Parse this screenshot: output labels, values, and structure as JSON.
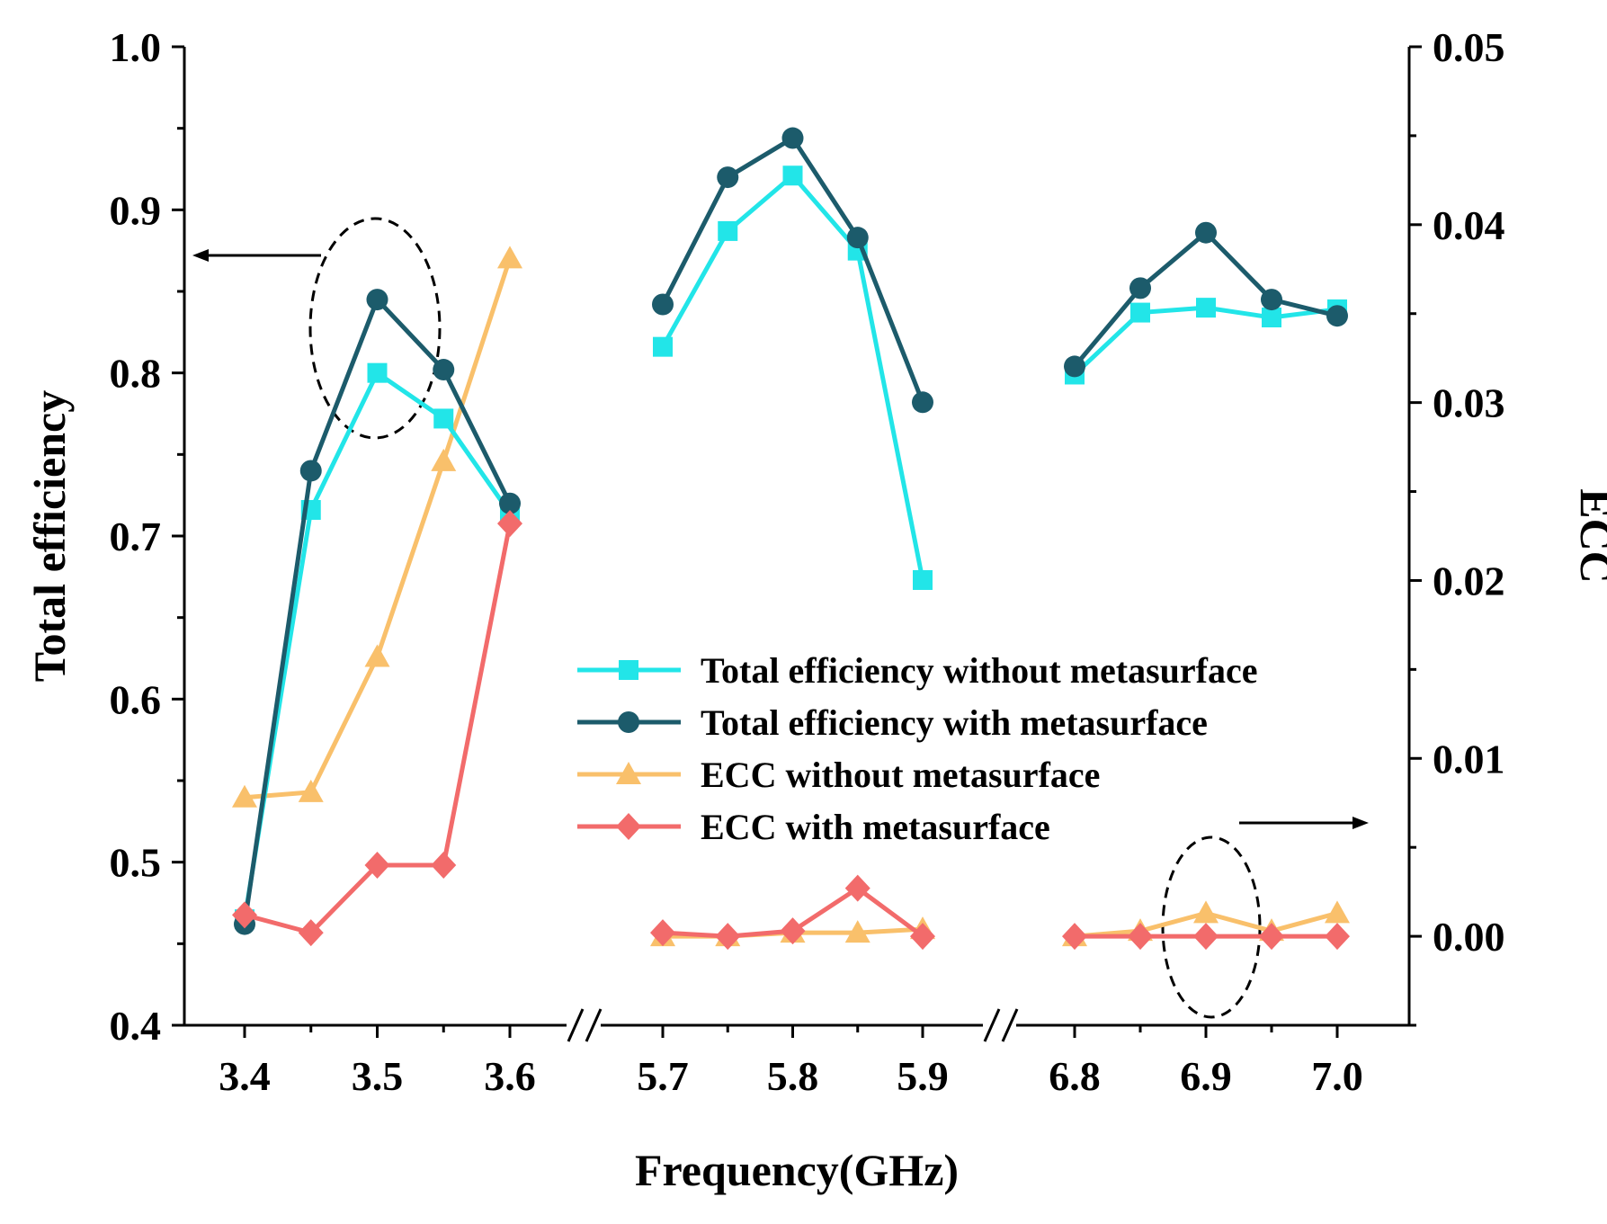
{
  "chart_data": {
    "type": "line",
    "xlabel": "Frequency(GHz)",
    "ylabel_left": "Total efficiency",
    "ylabel_right": "ECC",
    "ylim_left": [
      0.4,
      1.0
    ],
    "ylim_right": [
      -0.005,
      0.05
    ],
    "left_ticks": [
      "0.4",
      "0.5",
      "0.6",
      "0.7",
      "0.8",
      "0.9",
      "1.0"
    ],
    "right_ticks": [
      "0.00",
      "0.01",
      "0.02",
      "0.03",
      "0.04",
      "0.05"
    ],
    "x_segments": [
      {
        "ticks": [
          "3.4",
          "3.5",
          "3.6"
        ],
        "range": [
          3.4,
          3.6
        ]
      },
      {
        "ticks": [
          "5.7",
          "5.8",
          "5.9"
        ],
        "range": [
          5.7,
          5.9
        ]
      },
      {
        "ticks": [
          "6.8",
          "6.9",
          "7.0"
        ],
        "range": [
          6.8,
          7.0
        ]
      }
    ],
    "series": [
      {
        "name": "Total efficiency without metasurface",
        "axis": "left",
        "color": "#22E5E8",
        "marker": "square",
        "segments": [
          {
            "x": [
              3.4,
              3.45,
              3.5,
              3.55,
              3.6
            ],
            "y": [
              0.465,
              0.716,
              0.8,
              0.772,
              0.714
            ]
          },
          {
            "x": [
              5.7,
              5.75,
              5.8,
              5.85,
              5.9
            ],
            "y": [
              0.816,
              0.887,
              0.921,
              0.875,
              0.673
            ]
          },
          {
            "x": [
              6.8,
              6.85,
              6.9,
              6.95,
              7.0
            ],
            "y": [
              0.799,
              0.837,
              0.84,
              0.834,
              0.839
            ]
          }
        ]
      },
      {
        "name": "Total efficiency with metasurface",
        "axis": "left",
        "color": "#1C5B6B",
        "marker": "circle",
        "segments": [
          {
            "x": [
              3.4,
              3.45,
              3.5,
              3.55,
              3.6
            ],
            "y": [
              0.462,
              0.74,
              0.845,
              0.802,
              0.72
            ]
          },
          {
            "x": [
              5.7,
              5.75,
              5.8,
              5.85,
              5.9
            ],
            "y": [
              0.842,
              0.92,
              0.944,
              0.883,
              0.782
            ]
          },
          {
            "x": [
              6.8,
              6.85,
              6.9,
              6.95,
              7.0
            ],
            "y": [
              0.804,
              0.852,
              0.886,
              0.845,
              0.835
            ]
          }
        ]
      },
      {
        "name": "ECC without metasurface",
        "axis": "right",
        "color": "#F9C06B",
        "marker": "triangle",
        "segments": [
          {
            "x": [
              3.4,
              3.45,
              3.5,
              3.55,
              3.6
            ],
            "y": [
              0.0078,
              0.0081,
              0.0157,
              0.0267,
              0.0381
            ]
          },
          {
            "x": [
              5.7,
              5.75,
              5.8,
              5.85,
              5.9
            ],
            "y": [
              0.0,
              0.0,
              0.0002,
              0.0002,
              0.0004
            ]
          },
          {
            "x": [
              6.8,
              6.85,
              6.9,
              6.95,
              7.0
            ],
            "y": [
              0.0,
              0.0003,
              0.0013,
              0.0003,
              0.0013
            ]
          }
        ]
      },
      {
        "name": "ECC with metasurface",
        "axis": "right",
        "color": "#F26B6B",
        "marker": "diamond",
        "segments": [
          {
            "x": [
              3.4,
              3.45,
              3.5,
              3.55,
              3.6
            ],
            "y": [
              0.0012,
              0.0002,
              0.004,
              0.004,
              0.0232
            ]
          },
          {
            "x": [
              5.7,
              5.75,
              5.8,
              5.85,
              5.9
            ],
            "y": [
              0.0002,
              0.0,
              0.0003,
              0.0027,
              0.0
            ]
          },
          {
            "x": [
              6.8,
              6.85,
              6.9,
              6.95,
              7.0
            ],
            "y": [
              0.0,
              0.0,
              0.0,
              0.0,
              0.0
            ]
          }
        ]
      }
    ],
    "legend_position": "center-right",
    "annotations": [
      {
        "type": "ellipse-arrow",
        "target": "left-axis",
        "near_x": 3.5
      },
      {
        "type": "ellipse-arrow",
        "target": "right-axis",
        "near_x": 6.9
      }
    ]
  }
}
